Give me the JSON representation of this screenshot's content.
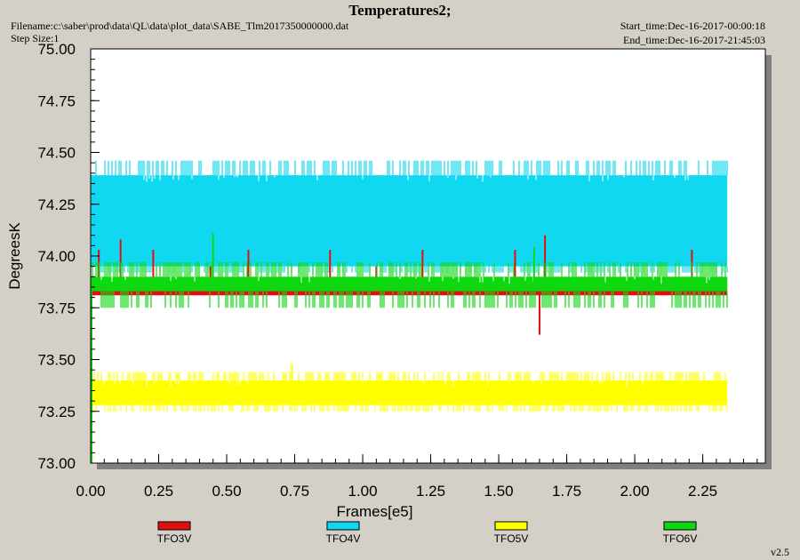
{
  "header": {
    "title": "Temperatures2;",
    "filename": "Filename:c:\\saber\\prod\\data\\QL\\data\\plot_data\\SABE_Tlm2017350000000.dat",
    "step_size": "Step Size:1",
    "start_time": "Start_time:Dec-16-2017-00:00:18",
    "end_time": "End_time:Dec-16-2017-21:45:03",
    "version": "v2.5"
  },
  "colors": {
    "TFO3V": "#e01010",
    "TFO4V": "#10d8f0",
    "TFO5V": "#ffff00",
    "TFO6V": "#10d810"
  },
  "chart_data": {
    "type": "line",
    "title": "Temperatures2;",
    "xlabel": "Frames[e5]",
    "ylabel": "DegreesK",
    "xlim": [
      0.0,
      2.48
    ],
    "ylim": [
      73.0,
      75.0
    ],
    "x_ticks": [
      "0.00",
      "0.25",
      "0.50",
      "0.75",
      "1.00",
      "1.25",
      "1.50",
      "1.75",
      "2.00",
      "2.25"
    ],
    "y_ticks": [
      "73.00",
      "73.25",
      "73.50",
      "73.75",
      "74.00",
      "74.25",
      "74.50",
      "74.75",
      "75.00"
    ],
    "grid": false,
    "legend": "bottom",
    "series": [
      {
        "name": "TFO3V",
        "x_range": [
          0.0,
          2.34
        ],
        "main_band": [
          73.81,
          73.89
        ],
        "spikes": [
          [
            0.03,
            74.03
          ],
          [
            0.11,
            74.08
          ],
          [
            0.23,
            74.03
          ],
          [
            0.44,
            73.95
          ],
          [
            0.58,
            74.03
          ],
          [
            0.88,
            74.03
          ],
          [
            1.05,
            73.95
          ],
          [
            1.22,
            74.03
          ],
          [
            1.56,
            74.03
          ],
          [
            1.65,
            73.62
          ],
          [
            1.67,
            74.1
          ],
          [
            2.21,
            74.03
          ]
        ]
      },
      {
        "name": "TFO4V",
        "x_range": [
          0.0,
          2.34
        ],
        "main_band": [
          73.95,
          74.39
        ],
        "outer_band": [
          73.92,
          74.46
        ]
      },
      {
        "name": "TFO5V",
        "x_range": [
          0.0,
          2.34
        ],
        "main_band": [
          73.28,
          73.4
        ],
        "outer_band": [
          73.25,
          73.44
        ],
        "spikes": [
          [
            0.74,
            73.48
          ]
        ]
      },
      {
        "name": "TFO6V",
        "x_range": [
          0.0,
          2.34
        ],
        "main_band": [
          73.83,
          73.9
        ],
        "outer_band": [
          73.75,
          73.97
        ],
        "spikes": [
          [
            0.45,
            74.11
          ],
          [
            1.63,
            74.04
          ]
        ]
      }
    ]
  }
}
